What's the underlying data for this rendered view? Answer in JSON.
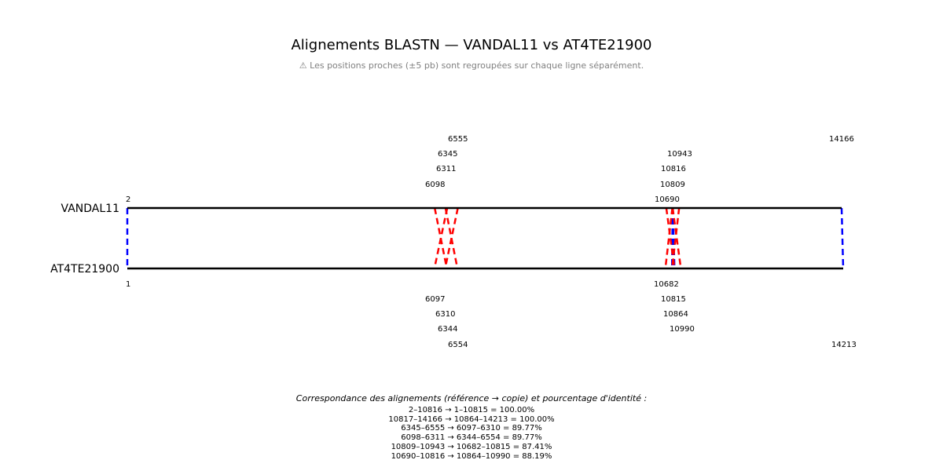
{
  "title": "Alignements BLASTN — VANDAL11 vs AT4TE21900",
  "subtitle": "⚠ Les positions proches (±5 pb) sont regroupées sur chaque ligne séparément.",
  "sequences": {
    "top": {
      "name": "VANDAL11",
      "start_label": "2"
    },
    "bottom": {
      "name": "AT4TE21900",
      "start_label": "1"
    }
  },
  "colors": {
    "alignment_minus": "#ff0000",
    "alignment_plus": "#0000ff",
    "backbone": "#000000"
  },
  "alignments": [
    {
      "ref_start": 2,
      "ref_end": 10816,
      "copy_start": 1,
      "copy_end": 10815,
      "identity": 100.0,
      "color": "#0000ff"
    },
    {
      "ref_start": 10817,
      "ref_end": 14166,
      "copy_start": 10864,
      "copy_end": 14213,
      "identity": 100.0,
      "color": "#0000ff"
    },
    {
      "ref_start": 6345,
      "ref_end": 6555,
      "copy_start": 6097,
      "copy_end": 6310,
      "identity": 89.77,
      "color": "#ff0000"
    },
    {
      "ref_start": 6098,
      "ref_end": 6311,
      "copy_start": 6344,
      "copy_end": 6554,
      "identity": 89.77,
      "color": "#ff0000"
    },
    {
      "ref_start": 10809,
      "ref_end": 10943,
      "copy_start": 10682,
      "copy_end": 10815,
      "identity": 87.41,
      "color": "#ff0000"
    },
    {
      "ref_start": 10690,
      "ref_end": 10816,
      "copy_start": 10864,
      "copy_end": 10990,
      "identity": 88.19,
      "color": "#ff0000"
    }
  ],
  "top_labels": [
    "6555",
    "6345",
    "6311",
    "6098",
    "10943",
    "10816",
    "10809",
    "10690",
    "14166"
  ],
  "bottom_labels": [
    "10682",
    "6097",
    "6310",
    "6344",
    "6554",
    "10815",
    "10864",
    "10990",
    "14213"
  ],
  "legend": {
    "heading": "Correspondance des alignements (référence → copie) et pourcentage d'identité :",
    "lines": [
      "2–10816 → 1–10815 = 100.00%",
      "10817–14166 → 10864–14213 = 100.00%",
      "6345–6555 → 6097–6310 = 89.77%",
      "6098–6311 → 6344–6554 = 89.77%",
      "10809–10943 → 10682–10815 = 87.41%",
      "10690–10816 → 10864–10990 = 88.19%"
    ]
  }
}
